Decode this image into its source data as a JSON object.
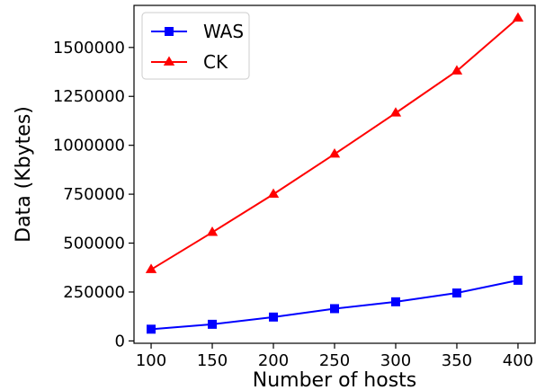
{
  "chart_data": {
    "type": "line",
    "title": "",
    "xlabel": "Number of hosts",
    "ylabel": "Data (Kbytes)",
    "x": [
      100,
      150,
      200,
      250,
      300,
      350,
      400
    ],
    "xlim": [
      86,
      414
    ],
    "ylim": [
      -12000,
      1715000
    ],
    "xticks": [
      100,
      150,
      200,
      250,
      300,
      350,
      400
    ],
    "yticks": [
      0,
      250000,
      500000,
      750000,
      1000000,
      1250000,
      1500000
    ],
    "grid": false,
    "legend_position": "top-left",
    "series": [
      {
        "name": "WAS",
        "color": "#0000ff",
        "marker": "square",
        "values": [
          60000,
          85000,
          122000,
          165000,
          200000,
          245000,
          310000
        ]
      },
      {
        "name": "CK",
        "color": "#ff0000",
        "marker": "triangle",
        "values": [
          365000,
          555000,
          750000,
          955000,
          1165000,
          1380000,
          1650000
        ]
      }
    ]
  }
}
